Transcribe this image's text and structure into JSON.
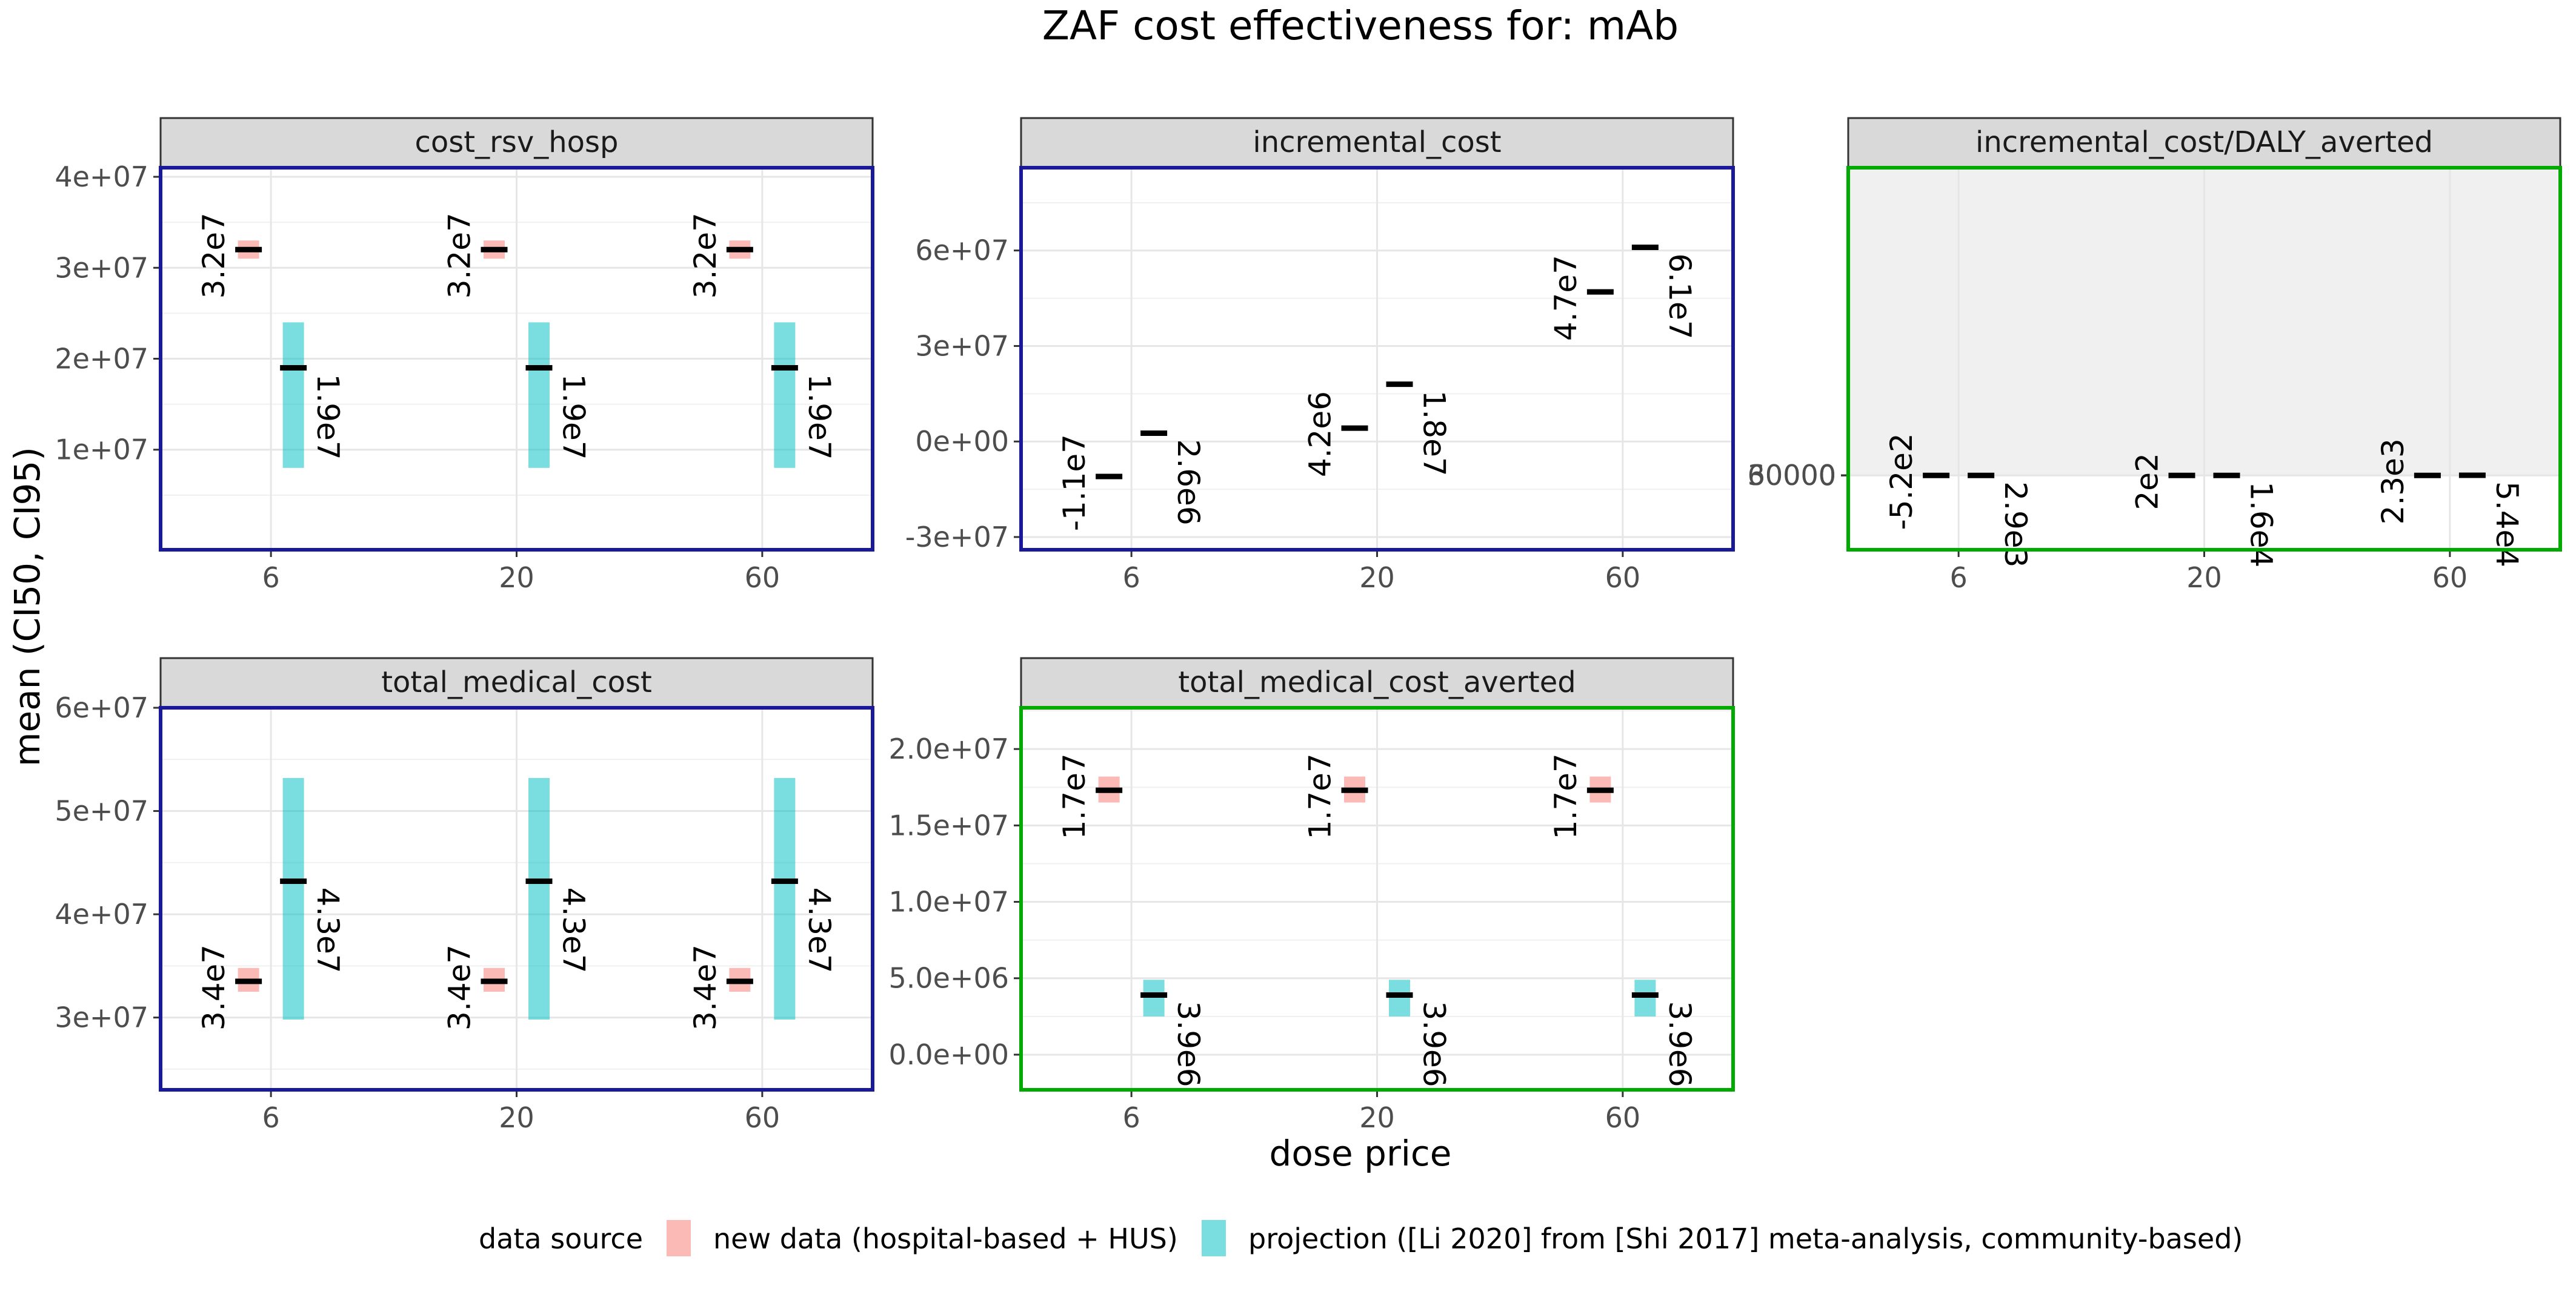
{
  "title": "ZAF cost effectiveness for: mAb",
  "xlabel": "dose price",
  "ylabel": "mean (CI50, CI95)",
  "legend": {
    "title": "data source",
    "placement": "bottom",
    "entries": [
      {
        "label": "new data (hospital-based + HUS)",
        "color": "#F8766D"
      },
      {
        "label": "projection ([Li 2020] from [Shi 2017] meta-analysis, community-based)",
        "color": "#00BFC4"
      }
    ]
  },
  "colors": {
    "panel_border_blue": "#1a1a99",
    "panel_border_green": "#00aa00",
    "strip_fill": "#d9d9d9",
    "mean_mark": "#000000"
  },
  "chart_data": [
    {
      "type": "crossbar",
      "facet": "cost_rsv_hosp",
      "border": "blue",
      "categories": [
        "6",
        "20",
        "60"
      ],
      "ylim": [
        -1000000,
        41000000
      ],
      "yticks": [
        10000000,
        20000000,
        30000000,
        40000000
      ],
      "yticklabels": [
        "1e+07",
        "2e+07",
        "3e+07",
        "4e+07"
      ],
      "series": [
        {
          "name": "new data (hospital-based + HUS)",
          "mean": [
            32000000,
            32000000,
            32000000
          ],
          "lo": [
            31000000,
            31000000,
            31000000
          ],
          "hi": [
            33000000,
            33000000,
            33000000
          ],
          "labels": [
            "3.2e7",
            "3.2e7",
            "3.2e7"
          ]
        },
        {
          "name": "projection ([Li 2020] from [Shi 2017] meta-analysis, community-based)",
          "mean": [
            19000000,
            19000000,
            19000000
          ],
          "lo": [
            8000000,
            8000000,
            8000000
          ],
          "hi": [
            24000000,
            24000000,
            24000000
          ],
          "labels": [
            "1.9e7",
            "1.9e7",
            "1.9e7"
          ]
        }
      ]
    },
    {
      "type": "crossbar",
      "facet": "incremental_cost",
      "border": "blue",
      "categories": [
        "6",
        "20",
        "60"
      ],
      "ylim": [
        -34000000,
        86000000
      ],
      "yticks": [
        -30000000,
        0,
        30000000,
        60000000
      ],
      "yticklabels": [
        "-3e+07",
        "0e+00",
        "3e+07",
        "6e+07"
      ],
      "series": [
        {
          "name": "new data (hospital-based + HUS)",
          "mean": [
            -11000000,
            4200000,
            47000000
          ],
          "lo": [
            -11000000,
            4200000,
            47000000
          ],
          "hi": [
            -11000000,
            4200000,
            47000000
          ],
          "labels": [
            "-1.1e7",
            "4.2e6",
            "4.7e7"
          ]
        },
        {
          "name": "projection ([Li 2020] from [Shi 2017] meta-analysis, community-based)",
          "mean": [
            2600000,
            18000000,
            61000000
          ],
          "lo": [
            2600000,
            18000000,
            61000000
          ],
          "hi": [
            2600000,
            18000000,
            61000000
          ],
          "labels": [
            "2.6e6",
            "1.8e7",
            "6.1e7"
          ]
        }
      ]
    },
    {
      "type": "crossbar",
      "facet": "incremental_cost/DALY_averted",
      "border": "green",
      "categories": [
        "6",
        "20",
        "60"
      ],
      "ylim": [
        -21000000,
        87000000
      ],
      "ylim_note": "",
      "yticks": [
        0,
        30000,
        60000
      ],
      "yticklabels": [
        "0",
        "30000",
        "60000"
      ],
      "series": [
        {
          "name": "new data (hospital-based + HUS)",
          "mean": [
            -520,
            200,
            2300
          ],
          "lo": [
            -520,
            200,
            2300
          ],
          "hi": [
            -520,
            200,
            2300
          ],
          "labels": [
            "-5.2e2",
            "2e2",
            "2.3e3"
          ]
        },
        {
          "name": "projection ([Li 2020] from [Shi 2017] meta-analysis, community-based)",
          "mean": [
            2900,
            16000,
            54000
          ],
          "lo": [
            1000,
            7000,
            25000
          ],
          "hi": [
            4000,
            20000,
            67000
          ],
          "labels": [
            "2.9e3",
            "1.6e4",
            "5.4e4"
          ]
        }
      ]
    },
    {
      "type": "crossbar",
      "facet": "total_medical_cost",
      "border": "blue",
      "categories": [
        "6",
        "20",
        "60"
      ],
      "ylim": [
        23000000,
        60000000
      ],
      "yticks": [
        30000000,
        40000000,
        50000000,
        60000000
      ],
      "yticklabels": [
        "3e+07",
        "4e+07",
        "5e+07",
        "6e+07"
      ],
      "series": [
        {
          "name": "new data (hospital-based + HUS)",
          "mean": [
            33500000,
            33500000,
            33500000
          ],
          "lo": [
            32500000,
            32500000,
            32500000
          ],
          "hi": [
            34800000,
            34800000,
            34800000
          ],
          "labels": [
            "3.4e7",
            "3.4e7",
            "3.4e7"
          ]
        },
        {
          "name": "projection ([Li 2020] from [Shi 2017] meta-analysis, community-based)",
          "mean": [
            43200000,
            43200000,
            43200000
          ],
          "lo": [
            29800000,
            29800000,
            29800000
          ],
          "hi": [
            53200000,
            53200000,
            53200000
          ],
          "labels": [
            "4.3e7",
            "4.3e7",
            "4.3e7"
          ]
        }
      ]
    },
    {
      "type": "crossbar",
      "facet": "total_medical_cost_averted",
      "border": "green",
      "categories": [
        "6",
        "20",
        "60"
      ],
      "ylim": [
        -2300000,
        22700000
      ],
      "yticks": [
        0,
        5000000,
        10000000,
        15000000,
        20000000
      ],
      "yticklabels": [
        "0.0e+00",
        "5.0e+06",
        "1.0e+07",
        "1.5e+07",
        "2.0e+07"
      ],
      "series": [
        {
          "name": "new data (hospital-based + HUS)",
          "mean": [
            17300000,
            17300000,
            17300000
          ],
          "lo": [
            16500000,
            16500000,
            16500000
          ],
          "hi": [
            18200000,
            18200000,
            18200000
          ],
          "labels": [
            "1.7e7",
            "1.7e7",
            "1.7e7"
          ]
        },
        {
          "name": "projection ([Li 2020] from [Shi 2017] meta-analysis, community-based)",
          "mean": [
            3900000,
            3900000,
            3900000
          ],
          "lo": [
            2500000,
            2500000,
            2500000
          ],
          "hi": [
            4900000,
            4900000,
            4900000
          ],
          "labels": [
            "3.9e6",
            "3.9e6",
            "3.9e6"
          ]
        }
      ]
    }
  ]
}
